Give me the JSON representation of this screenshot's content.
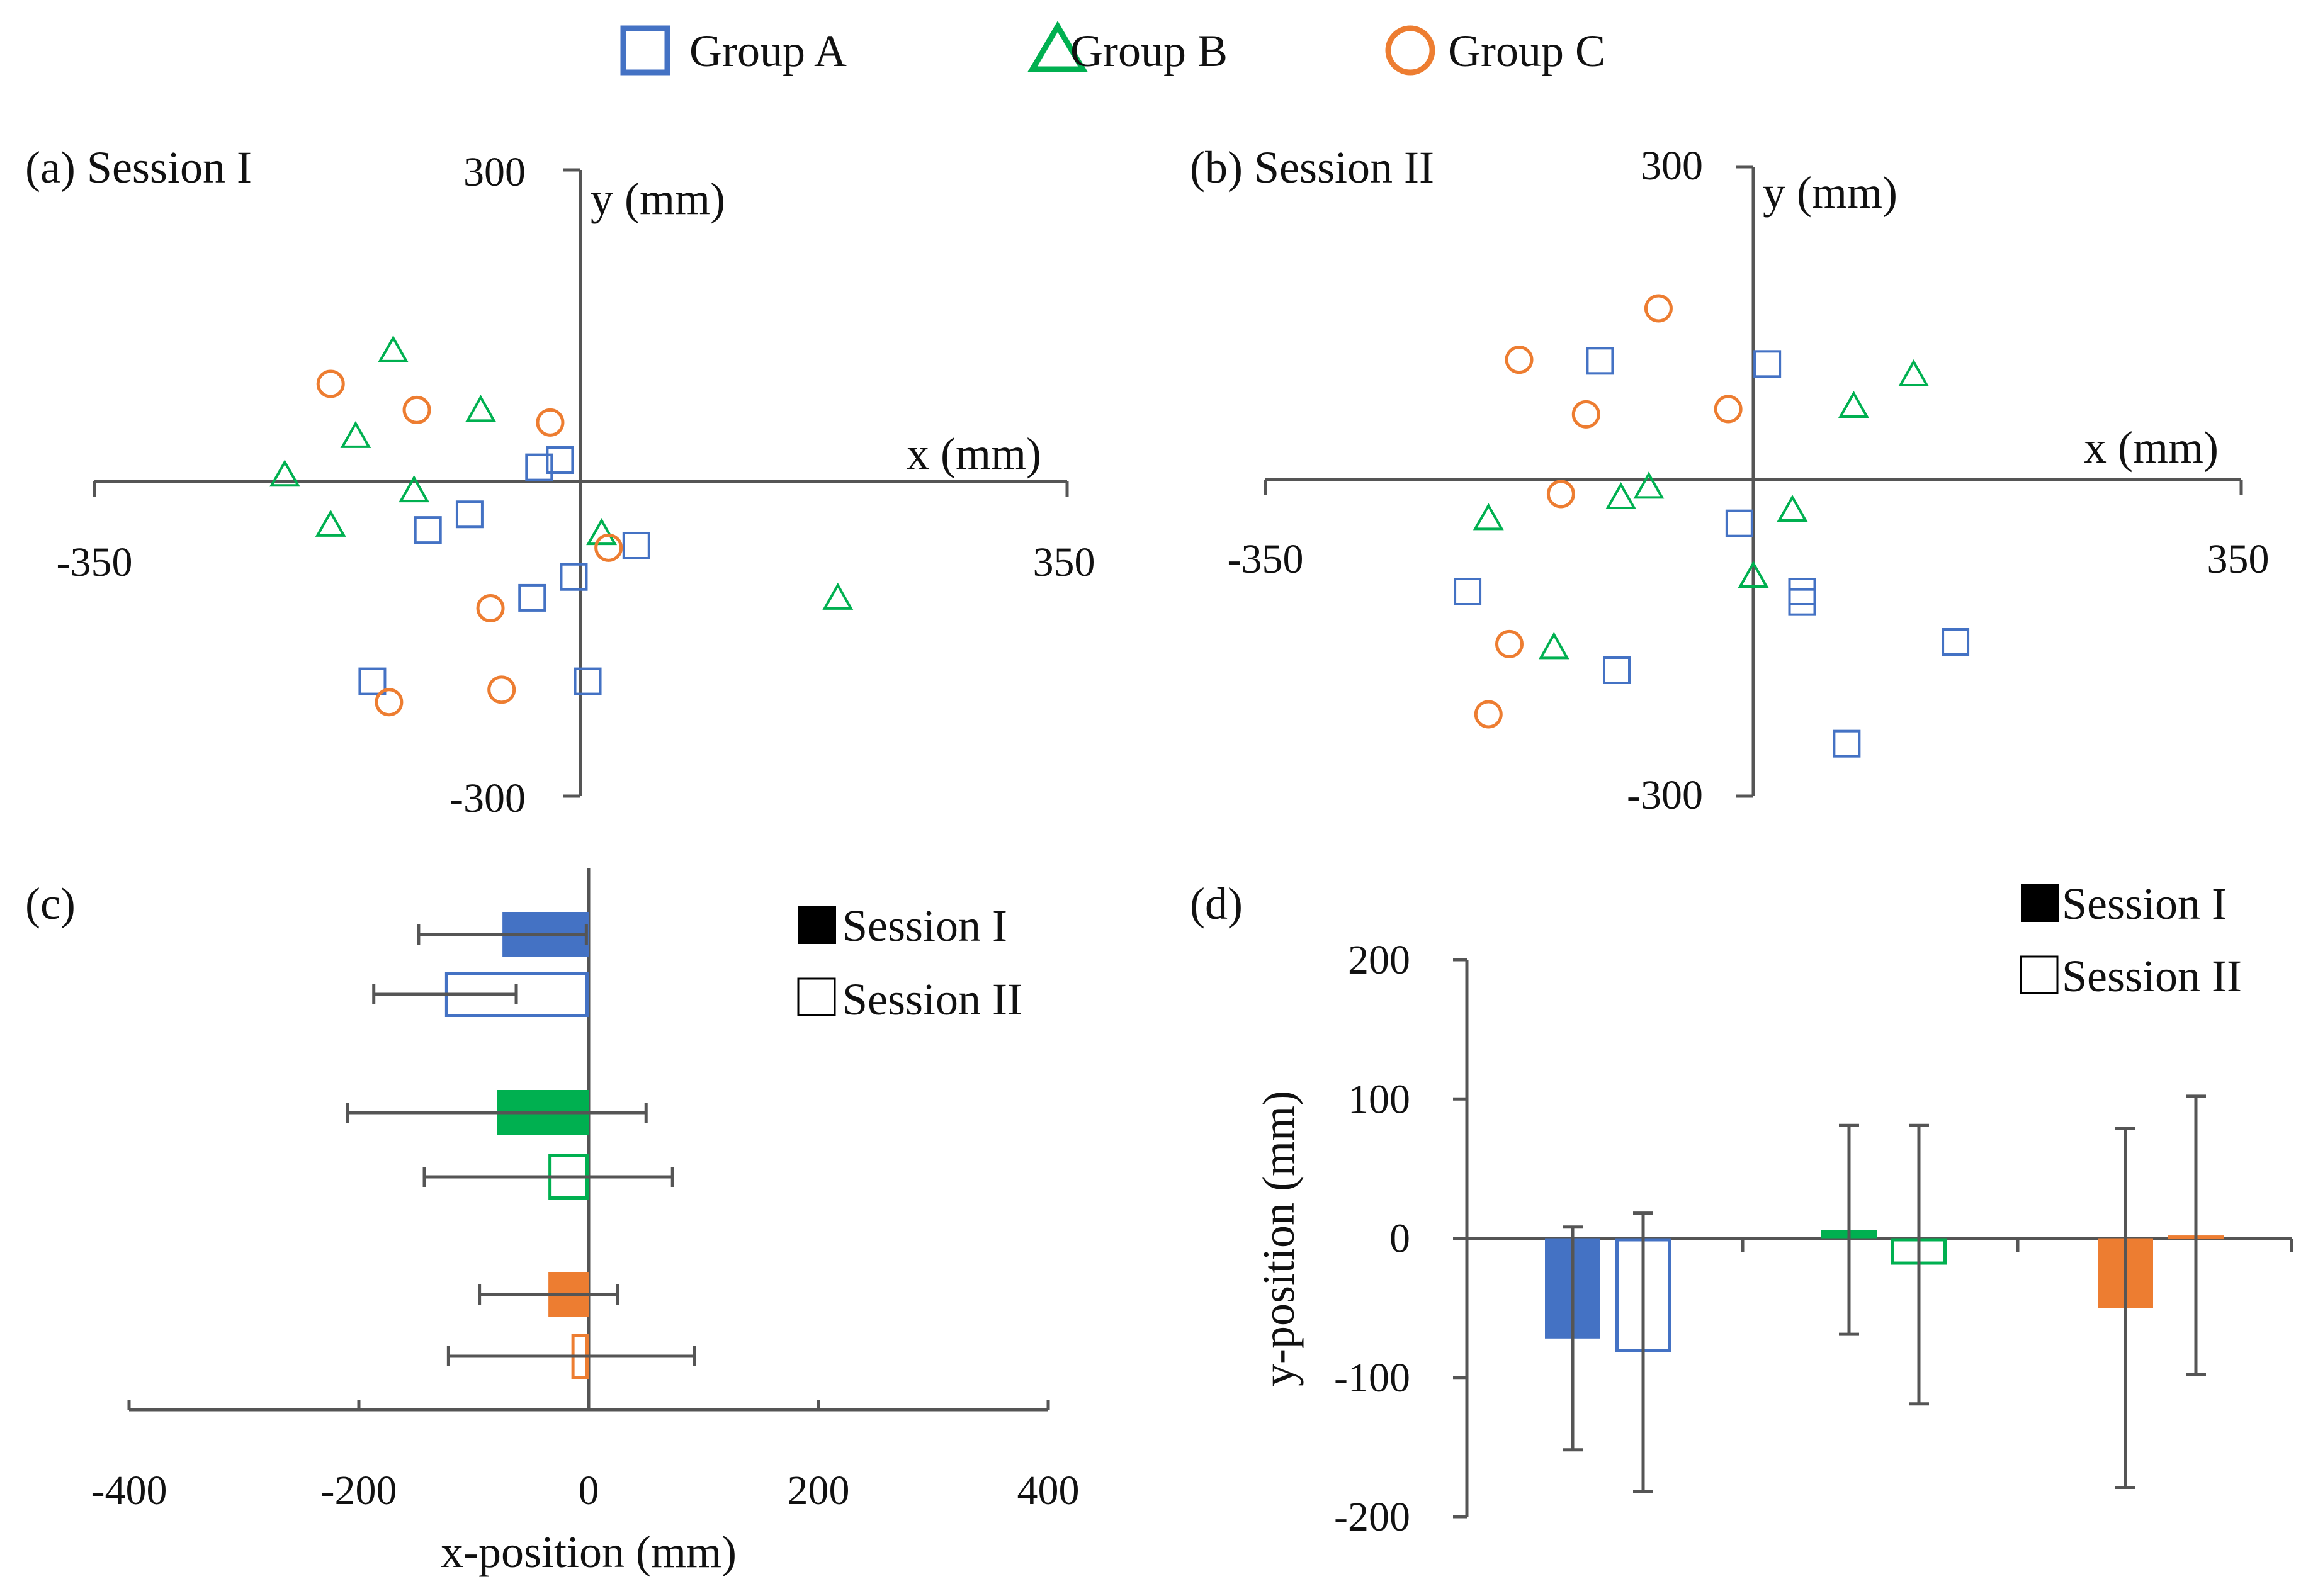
{
  "legend": [
    {
      "label": "Group A",
      "marker": "square",
      "color": "#4472C4"
    },
    {
      "label": "Group B",
      "marker": "triangle",
      "color": "#00B050"
    },
    {
      "label": "Group C",
      "marker": "circle",
      "color": "#ED7D31"
    }
  ],
  "chart_data": [
    {
      "id": "a",
      "type": "scatter",
      "panel_label": "(a) Session I",
      "xlabel": "x (mm)",
      "ylabel": "y (mm)",
      "xlim": [
        -350,
        350
      ],
      "ylim": [
        -300,
        300
      ],
      "tick_labels": {
        "x_min": "-350",
        "x_max": "350",
        "y_max": "300",
        "y_min": "-300"
      },
      "series": [
        {
          "name": "Group A",
          "points": [
            [
              -15,
              22
            ],
            [
              -30,
              15
            ],
            [
              -80,
              -30
            ],
            [
              -110,
              -45
            ],
            [
              -35,
              -110
            ],
            [
              -5,
              -90
            ],
            [
              -150,
              -190
            ],
            [
              40,
              -60
            ],
            [
              5,
              -190
            ]
          ]
        },
        {
          "name": "Group B",
          "points": [
            [
              -135,
              127
            ],
            [
              -72,
              70
            ],
            [
              -162,
              45
            ],
            [
              -213,
              8
            ],
            [
              -120,
              -7
            ],
            [
              -180,
              -40
            ],
            [
              15,
              -48
            ],
            [
              185,
              -110
            ]
          ]
        },
        {
          "name": "Group C",
          "points": [
            [
              -180,
              95
            ],
            [
              -118,
              70
            ],
            [
              -22,
              58
            ],
            [
              20,
              -62
            ],
            [
              -65,
              -120
            ],
            [
              -57,
              -198
            ],
            [
              -138,
              -210
            ]
          ]
        }
      ]
    },
    {
      "id": "b",
      "type": "scatter",
      "panel_label": "(b) Session II",
      "xlabel": "x (mm)",
      "ylabel": "y (mm)",
      "xlim": [
        -350,
        350
      ],
      "ylim": [
        -300,
        300
      ],
      "tick_labels": {
        "x_min": "-350",
        "x_max": "350",
        "y_max": "300",
        "y_min": "-300"
      },
      "series": [
        {
          "name": "Group A",
          "points": [
            [
              -110,
              115
            ],
            [
              10,
              112
            ],
            [
              -10,
              -40
            ],
            [
              -205,
              -105
            ],
            [
              35,
              -105
            ],
            [
              35,
              -115
            ],
            [
              145,
              -153
            ],
            [
              -98,
              -180
            ],
            [
              67,
              -250
            ]
          ]
        },
        {
          "name": "Group B",
          "points": [
            [
              72,
              72
            ],
            [
              115,
              102
            ],
            [
              -75,
              -5
            ],
            [
              -95,
              -15
            ],
            [
              -190,
              -35
            ],
            [
              28,
              -27
            ],
            [
              0,
              -90
            ],
            [
              -143,
              -158
            ]
          ]
        },
        {
          "name": "Group C",
          "points": [
            [
              -68,
              165
            ],
            [
              -168,
              116
            ],
            [
              -120,
              64
            ],
            [
              -18,
              69
            ],
            [
              -138,
              -12
            ],
            [
              -175,
              -155
            ],
            [
              -190,
              -222
            ]
          ]
        }
      ]
    },
    {
      "id": "c",
      "type": "bar",
      "orientation": "horizontal",
      "panel_label": "(c)",
      "xlabel": "x-position (mm)",
      "xlim": [
        -400,
        400
      ],
      "xticks": [
        -400,
        -200,
        0,
        200,
        400
      ],
      "legend": [
        "Session I",
        "Session II"
      ],
      "series": [
        {
          "name": "Group A",
          "session_I": {
            "value": -75,
            "err": 73
          },
          "session_II": {
            "value": -125,
            "err": 62
          }
        },
        {
          "name": "Group B",
          "session_I": {
            "value": -80,
            "err": 130
          },
          "session_II": {
            "value": -35,
            "err": 108
          }
        },
        {
          "name": "Group C",
          "session_I": {
            "value": -35,
            "err": 60
          },
          "session_II": {
            "value": -15,
            "err": 107
          }
        }
      ]
    },
    {
      "id": "d",
      "type": "bar",
      "orientation": "vertical",
      "panel_label": "(d)",
      "ylabel": "y-position (mm)",
      "ylim": [
        -200,
        200
      ],
      "yticks": [
        -200,
        -100,
        0,
        100,
        200
      ],
      "legend": [
        "Session I",
        "Session II"
      ],
      "series": [
        {
          "name": "Group A",
          "session_I": {
            "value": -72,
            "err": 80
          },
          "session_II": {
            "value": -82,
            "err": 100
          }
        },
        {
          "name": "Group B",
          "session_I": {
            "value": 6,
            "err": 75
          },
          "session_II": {
            "value": -19,
            "err": 100
          }
        },
        {
          "name": "Group C",
          "session_I": {
            "value": -50,
            "err": 129
          },
          "session_II": {
            "value": 2,
            "err": 100
          }
        }
      ]
    }
  ]
}
